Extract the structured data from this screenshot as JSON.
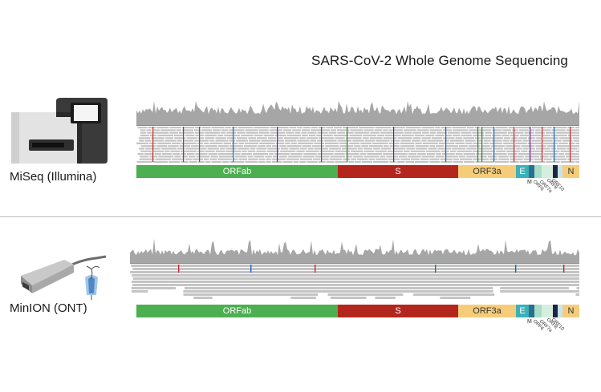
{
  "title": "SARS-CoV-2 Whole Genome Sequencing",
  "panels": [
    {
      "instrument_label": "MiSeq (Illumina)",
      "genes": [
        {
          "label": "ORFab",
          "color": "#4caf50",
          "text": "light"
        },
        {
          "label": "S",
          "color": "#b3261e",
          "text": "light"
        },
        {
          "label": "ORF3a",
          "color": "#f5cd7a",
          "text": "dark"
        },
        {
          "label": "E",
          "color": "#3bb0b8",
          "text": "light"
        },
        {
          "label": "",
          "color": "#2b6e8f",
          "text": "light"
        },
        {
          "label": "",
          "color": "#a9dcc6",
          "text": "dark"
        },
        {
          "label": "",
          "color": "#d6eedf",
          "text": "dark"
        },
        {
          "label": "",
          "color": "#1f2440",
          "text": "light"
        },
        {
          "label": "",
          "color": "#c9e3ec",
          "text": "dark"
        },
        {
          "label": "N",
          "color": "#f5cd7a",
          "text": "dark"
        }
      ],
      "small_labels": {
        "m": "M",
        "orf6": "ORF6",
        "orf7a": "ORF7a",
        "orf8": "ORF8",
        "orf10": "ORF10"
      }
    },
    {
      "instrument_label": "MinION (ONT)",
      "genes": [
        {
          "label": "ORFab",
          "color": "#4caf50",
          "text": "light"
        },
        {
          "label": "S",
          "color": "#b3261e",
          "text": "light"
        },
        {
          "label": "ORF3a",
          "color": "#f5cd7a",
          "text": "dark"
        },
        {
          "label": "E",
          "color": "#3bb0b8",
          "text": "light"
        },
        {
          "label": "",
          "color": "#2b6e8f",
          "text": "light"
        },
        {
          "label": "",
          "color": "#a9dcc6",
          "text": "dark"
        },
        {
          "label": "",
          "color": "#d6eedf",
          "text": "dark"
        },
        {
          "label": "",
          "color": "#1f2440",
          "text": "light"
        },
        {
          "label": "",
          "color": "#c9e3ec",
          "text": "dark"
        },
        {
          "label": "N",
          "color": "#f5cd7a",
          "text": "dark"
        }
      ],
      "small_labels": {
        "m": "M",
        "orf6": "ORF6",
        "orf7a": "ORF7a",
        "orf8": "ORF8",
        "orf10": "ORF10"
      }
    }
  ],
  "colors": {
    "coverage": "#a6a6a6",
    "read": "#c4c4c4",
    "mismatch": [
      "#c62828",
      "#2e7d32",
      "#1565c0",
      "#6a1b9a"
    ]
  }
}
